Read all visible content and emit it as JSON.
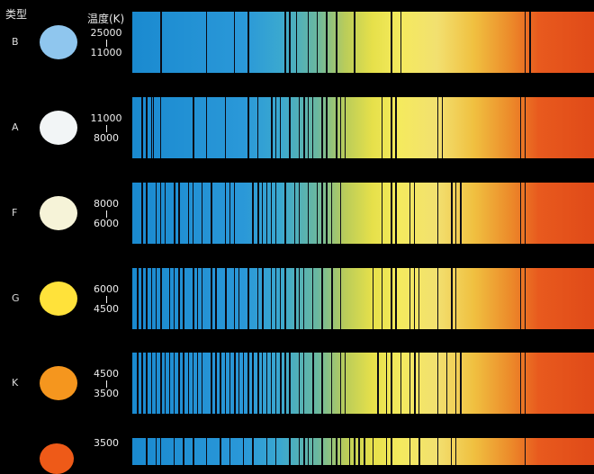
{
  "header": {
    "type_label": "类型",
    "temp_label": "温度(K)"
  },
  "rows": [
    {
      "class": "B",
      "t_high": "25000",
      "t_low": "11000",
      "color": "#8fc6ee",
      "lines": [
        0.06,
        0.16,
        0.22,
        0.25,
        0.33,
        0.34,
        0.355,
        0.38,
        0.4,
        0.42,
        0.44,
        0.48,
        0.56,
        0.58,
        0.85,
        0.86
      ]
    },
    {
      "class": "A",
      "t_high": "11000",
      "t_low": "8000",
      "color": "#f2f5f6",
      "lines": [
        0.02,
        0.03,
        0.04,
        0.045,
        0.06,
        0.13,
        0.16,
        0.2,
        0.25,
        0.27,
        0.3,
        0.31,
        0.32,
        0.34,
        0.36,
        0.37,
        0.38,
        0.39,
        0.41,
        0.42,
        0.44,
        0.45,
        0.46,
        0.54,
        0.56,
        0.57,
        0.66,
        0.67,
        0.84,
        0.85
      ]
    },
    {
      "class": "F",
      "t_high": "8000",
      "t_low": "6000",
      "color": "#f6f3d8",
      "lines": [
        0.02,
        0.03,
        0.05,
        0.06,
        0.07,
        0.09,
        0.1,
        0.12,
        0.13,
        0.15,
        0.17,
        0.2,
        0.21,
        0.22,
        0.26,
        0.27,
        0.28,
        0.29,
        0.3,
        0.31,
        0.33,
        0.35,
        0.36,
        0.38,
        0.4,
        0.41,
        0.42,
        0.43,
        0.45,
        0.54,
        0.56,
        0.57,
        0.6,
        0.61,
        0.66,
        0.69,
        0.7,
        0.71,
        0.84,
        0.85
      ]
    },
    {
      "class": "G",
      "t_high": "6000",
      "t_low": "4500",
      "color": "#ffe23a",
      "lines": [
        0.01,
        0.02,
        0.03,
        0.04,
        0.05,
        0.06,
        0.08,
        0.09,
        0.1,
        0.11,
        0.13,
        0.14,
        0.15,
        0.17,
        0.18,
        0.2,
        0.22,
        0.23,
        0.25,
        0.27,
        0.28,
        0.3,
        0.31,
        0.32,
        0.33,
        0.35,
        0.36,
        0.37,
        0.39,
        0.41,
        0.43,
        0.45,
        0.52,
        0.54,
        0.56,
        0.57,
        0.6,
        0.61,
        0.62,
        0.66,
        0.69,
        0.7,
        0.84,
        0.85
      ]
    },
    {
      "class": "K",
      "t_high": "4500",
      "t_low": "3500",
      "color": "#f5961e",
      "lines": [
        0.01,
        0.02,
        0.03,
        0.04,
        0.05,
        0.06,
        0.07,
        0.08,
        0.09,
        0.1,
        0.11,
        0.12,
        0.13,
        0.14,
        0.15,
        0.17,
        0.18,
        0.19,
        0.2,
        0.21,
        0.22,
        0.23,
        0.24,
        0.25,
        0.26,
        0.27,
        0.28,
        0.29,
        0.3,
        0.31,
        0.32,
        0.33,
        0.34,
        0.36,
        0.37,
        0.39,
        0.41,
        0.43,
        0.45,
        0.46,
        0.53,
        0.55,
        0.56,
        0.58,
        0.6,
        0.61,
        0.62,
        0.66,
        0.68,
        0.7,
        0.71,
        0.84,
        0.85
      ]
    },
    {
      "class": "",
      "t_high": "3500",
      "t_low": "",
      "color": "#ee5a18",
      "lines": [
        0.03,
        0.05,
        0.06,
        0.09,
        0.11,
        0.13,
        0.16,
        0.19,
        0.21,
        0.24,
        0.26,
        0.29,
        0.31,
        0.34,
        0.36,
        0.37,
        0.38,
        0.39,
        0.41,
        0.43,
        0.44,
        0.45,
        0.47,
        0.48,
        0.49,
        0.5,
        0.52,
        0.55,
        0.56,
        0.6,
        0.62,
        0.66,
        0.69,
        0.7,
        0.85
      ]
    }
  ]
}
